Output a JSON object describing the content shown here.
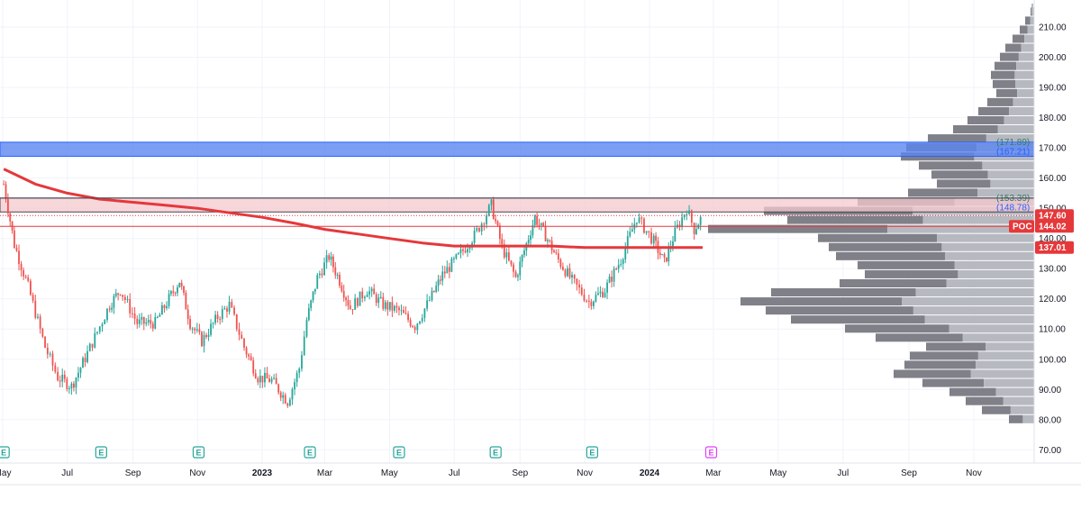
{
  "chart_data": {
    "type": "candlestick",
    "y_axis": {
      "range": [
        68,
        216
      ],
      "ticks": [
        "210.00",
        "200.00",
        "190.00",
        "180.00",
        "170.00",
        "160.00",
        "150.00",
        "140.00",
        "130.00",
        "120.00",
        "110.00",
        "100.00",
        "90.00",
        "80.00",
        "70.00"
      ],
      "tick_values": [
        210,
        200,
        190,
        180,
        170,
        160,
        150,
        140,
        130,
        120,
        110,
        100,
        90,
        80,
        70
      ]
    },
    "x_axis": {
      "ticks": [
        "May",
        "Jul",
        "Sep",
        "Nov",
        "2023",
        "Mar",
        "May",
        "Jul",
        "Sep",
        "Nov",
        "2024",
        "Mar",
        "May",
        "Jul",
        "Sep",
        "Nov"
      ],
      "bold_ticks": [
        "2023",
        "2024"
      ]
    },
    "price_path": [
      [
        "2022-05-02",
        158
      ],
      [
        "2022-05-12",
        138
      ],
      [
        "2022-05-25",
        124
      ],
      [
        "2022-06-10",
        104
      ],
      [
        "2022-06-22",
        94
      ],
      [
        "2022-07-05",
        91
      ],
      [
        "2022-07-20",
        102
      ],
      [
        "2022-08-10",
        118
      ],
      [
        "2022-08-20",
        123
      ],
      [
        "2022-09-05",
        112
      ],
      [
        "2022-09-22",
        112
      ],
      [
        "2022-10-05",
        120
      ],
      [
        "2022-10-15",
        126
      ],
      [
        "2022-10-25",
        112
      ],
      [
        "2022-11-05",
        106
      ],
      [
        "2022-11-20",
        114
      ],
      [
        "2022-12-01",
        118
      ],
      [
        "2022-12-15",
        104
      ],
      [
        "2022-12-28",
        94
      ],
      [
        "2023-01-10",
        93
      ],
      [
        "2023-01-25",
        86
      ],
      [
        "2023-02-05",
        97
      ],
      [
        "2023-02-12",
        113
      ],
      [
        "2023-02-22",
        127
      ],
      [
        "2023-03-05",
        134
      ],
      [
        "2023-03-15",
        126
      ],
      [
        "2023-03-25",
        117
      ],
      [
        "2023-04-10",
        123
      ],
      [
        "2023-04-25",
        118
      ],
      [
        "2023-05-10",
        116
      ],
      [
        "2023-05-25",
        111
      ],
      [
        "2023-06-10",
        121
      ],
      [
        "2023-06-20",
        128
      ],
      [
        "2023-07-05",
        134
      ],
      [
        "2023-07-20",
        141
      ],
      [
        "2023-08-05",
        151
      ],
      [
        "2023-08-15",
        137
      ],
      [
        "2023-08-28",
        127
      ],
      [
        "2023-09-05",
        136
      ],
      [
        "2023-09-15",
        147
      ],
      [
        "2023-09-25",
        141
      ],
      [
        "2023-10-05",
        134
      ],
      [
        "2023-10-20",
        126
      ],
      [
        "2023-11-05",
        119
      ],
      [
        "2023-11-20",
        123
      ],
      [
        "2023-12-05",
        133
      ],
      [
        "2023-12-20",
        147
      ],
      [
        "2024-01-05",
        139
      ],
      [
        "2024-01-15",
        132
      ],
      [
        "2024-01-25",
        142
      ],
      [
        "2024-02-05",
        150
      ],
      [
        "2024-02-12",
        143
      ],
      [
        "2024-02-20",
        147.6
      ]
    ],
    "moving_average": [
      [
        "2022-05-02",
        163
      ],
      [
        "2022-06-01",
        158
      ],
      [
        "2022-07-01",
        155
      ],
      [
        "2022-08-01",
        153
      ],
      [
        "2022-09-01",
        152
      ],
      [
        "2022-10-01",
        151
      ],
      [
        "2022-11-01",
        150
      ],
      [
        "2022-12-01",
        148.5
      ],
      [
        "2023-01-01",
        147
      ],
      [
        "2023-02-01",
        145
      ],
      [
        "2023-03-01",
        143
      ],
      [
        "2023-04-01",
        141.5
      ],
      [
        "2023-05-01",
        140
      ],
      [
        "2023-06-01",
        138.5
      ],
      [
        "2023-07-01",
        137.5
      ],
      [
        "2023-08-01",
        137.5
      ],
      [
        "2023-09-01",
        137.5
      ],
      [
        "2023-10-01",
        137.5
      ],
      [
        "2023-11-01",
        137
      ],
      [
        "2023-12-01",
        137
      ],
      [
        "2024-01-01",
        137
      ],
      [
        "2024-02-01",
        137
      ],
      [
        "2024-02-20",
        137
      ]
    ],
    "zones": [
      {
        "name": "blue-zone",
        "top": 171.89,
        "bottom": 167.21,
        "top_label": "(171.89)",
        "bottom_label": "(167.21)",
        "color": "#5b86f0"
      },
      {
        "name": "pink-zone",
        "top": 153.39,
        "bottom": 148.78,
        "top_label": "(153.39)",
        "bottom_label": "(148.78)",
        "color": "#f6c9cf"
      }
    ],
    "price_labels": [
      {
        "text": "147.60",
        "value": 147.6,
        "color": "#e5383b"
      },
      {
        "text": "144.02",
        "value": 144.02,
        "color": "#e5383b",
        "tag": "POC"
      },
      {
        "text": "137.01",
        "value": 137.01,
        "color": "#e5383b"
      }
    ],
    "poc_line": 144.02,
    "volume_profile": [
      [
        215,
        4
      ],
      [
        212,
        10
      ],
      [
        209,
        16
      ],
      [
        206,
        24
      ],
      [
        203,
        32
      ],
      [
        200,
        38
      ],
      [
        197,
        44
      ],
      [
        194,
        48
      ],
      [
        191,
        46
      ],
      [
        188,
        42
      ],
      [
        185,
        52
      ],
      [
        182,
        62
      ],
      [
        179,
        74
      ],
      [
        176,
        90
      ],
      [
        173,
        118
      ],
      [
        170,
        142
      ],
      [
        167,
        148
      ],
      [
        164,
        128
      ],
      [
        161,
        114
      ],
      [
        158,
        108
      ],
      [
        155,
        140
      ],
      [
        152,
        196
      ],
      [
        149,
        300
      ],
      [
        146,
        274
      ],
      [
        143,
        362
      ],
      [
        140,
        240
      ],
      [
        137,
        228
      ],
      [
        134,
        220
      ],
      [
        131,
        196
      ],
      [
        128,
        188
      ],
      [
        125,
        216
      ],
      [
        122,
        292
      ],
      [
        119,
        326
      ],
      [
        116,
        298
      ],
      [
        113,
        270
      ],
      [
        110,
        210
      ],
      [
        107,
        176
      ],
      [
        104,
        120
      ],
      [
        101,
        138
      ],
      [
        98,
        144
      ],
      [
        95,
        156
      ],
      [
        92,
        124
      ],
      [
        89,
        94
      ],
      [
        86,
        76
      ],
      [
        83,
        58
      ],
      [
        80,
        28
      ]
    ],
    "earnings_markers": [
      {
        "date": "2022-05-02",
        "label": "E",
        "upcoming": false
      },
      {
        "date": "2022-08-02",
        "label": "E",
        "upcoming": false
      },
      {
        "date": "2022-11-02",
        "label": "E",
        "upcoming": false
      },
      {
        "date": "2023-02-15",
        "label": "E",
        "upcoming": false
      },
      {
        "date": "2023-05-10",
        "label": "E",
        "upcoming": false
      },
      {
        "date": "2023-08-09",
        "label": "E",
        "upcoming": false
      },
      {
        "date": "2023-11-08",
        "label": "E",
        "upcoming": false
      },
      {
        "date": "2024-02-28",
        "label": "E",
        "upcoming": true
      }
    ],
    "colors": {
      "up": "#26a69a",
      "down": "#ef5350",
      "ma": "#e5383b",
      "vp_bar": "#7f8088",
      "vp_bar_light": "#b7b9c0",
      "grid": "#f0f3fa",
      "axis_text": "#131722"
    },
    "grid": true
  }
}
